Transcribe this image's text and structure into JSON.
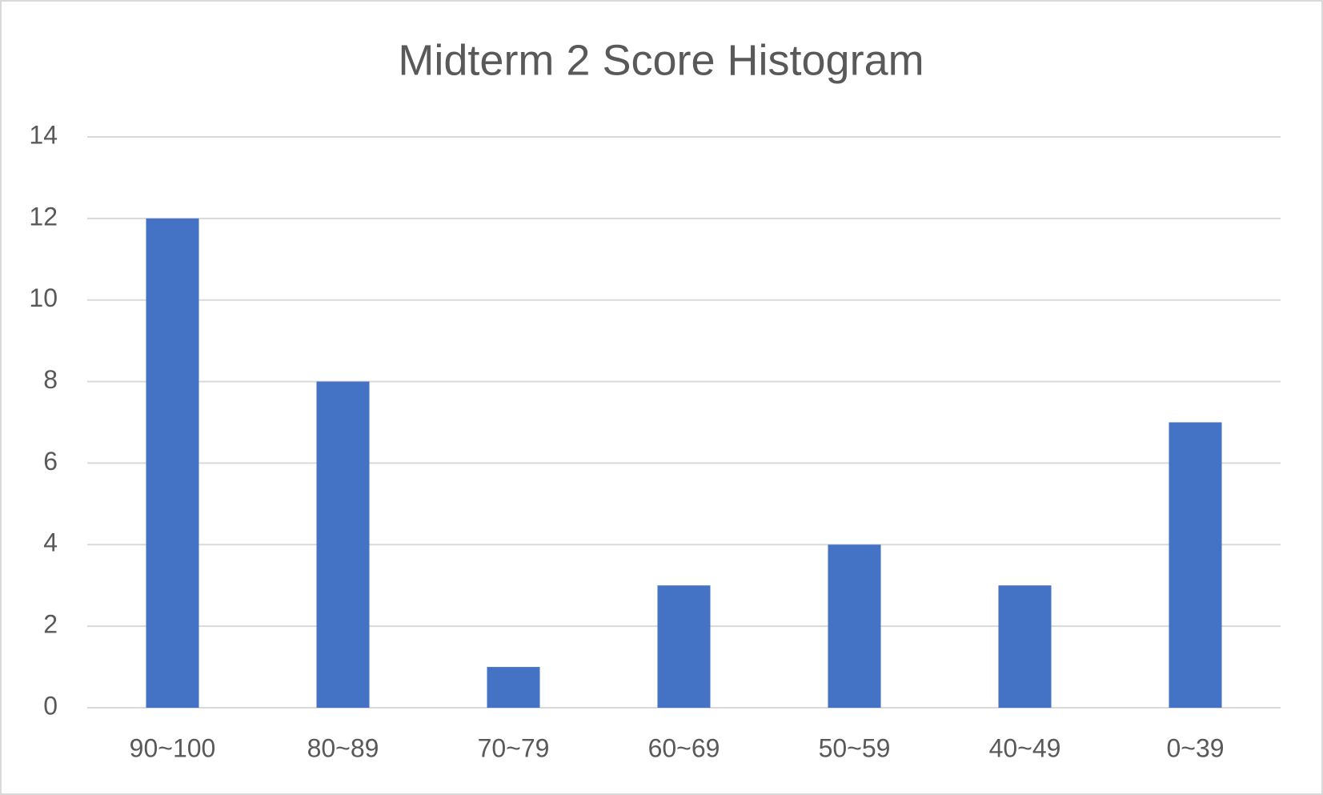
{
  "chart_data": {
    "type": "bar",
    "title": "Midterm 2 Score Histogram",
    "categories": [
      "90~100",
      "80~89",
      "70~79",
      "60~69",
      "50~59",
      "40~49",
      "0~39"
    ],
    "values": [
      12,
      8,
      1,
      3,
      4,
      3,
      7
    ],
    "color": "#4472c4",
    "ylim": [
      0,
      14
    ],
    "yticks": [
      0,
      2,
      4,
      6,
      8,
      10,
      12,
      14
    ],
    "grid": true
  }
}
